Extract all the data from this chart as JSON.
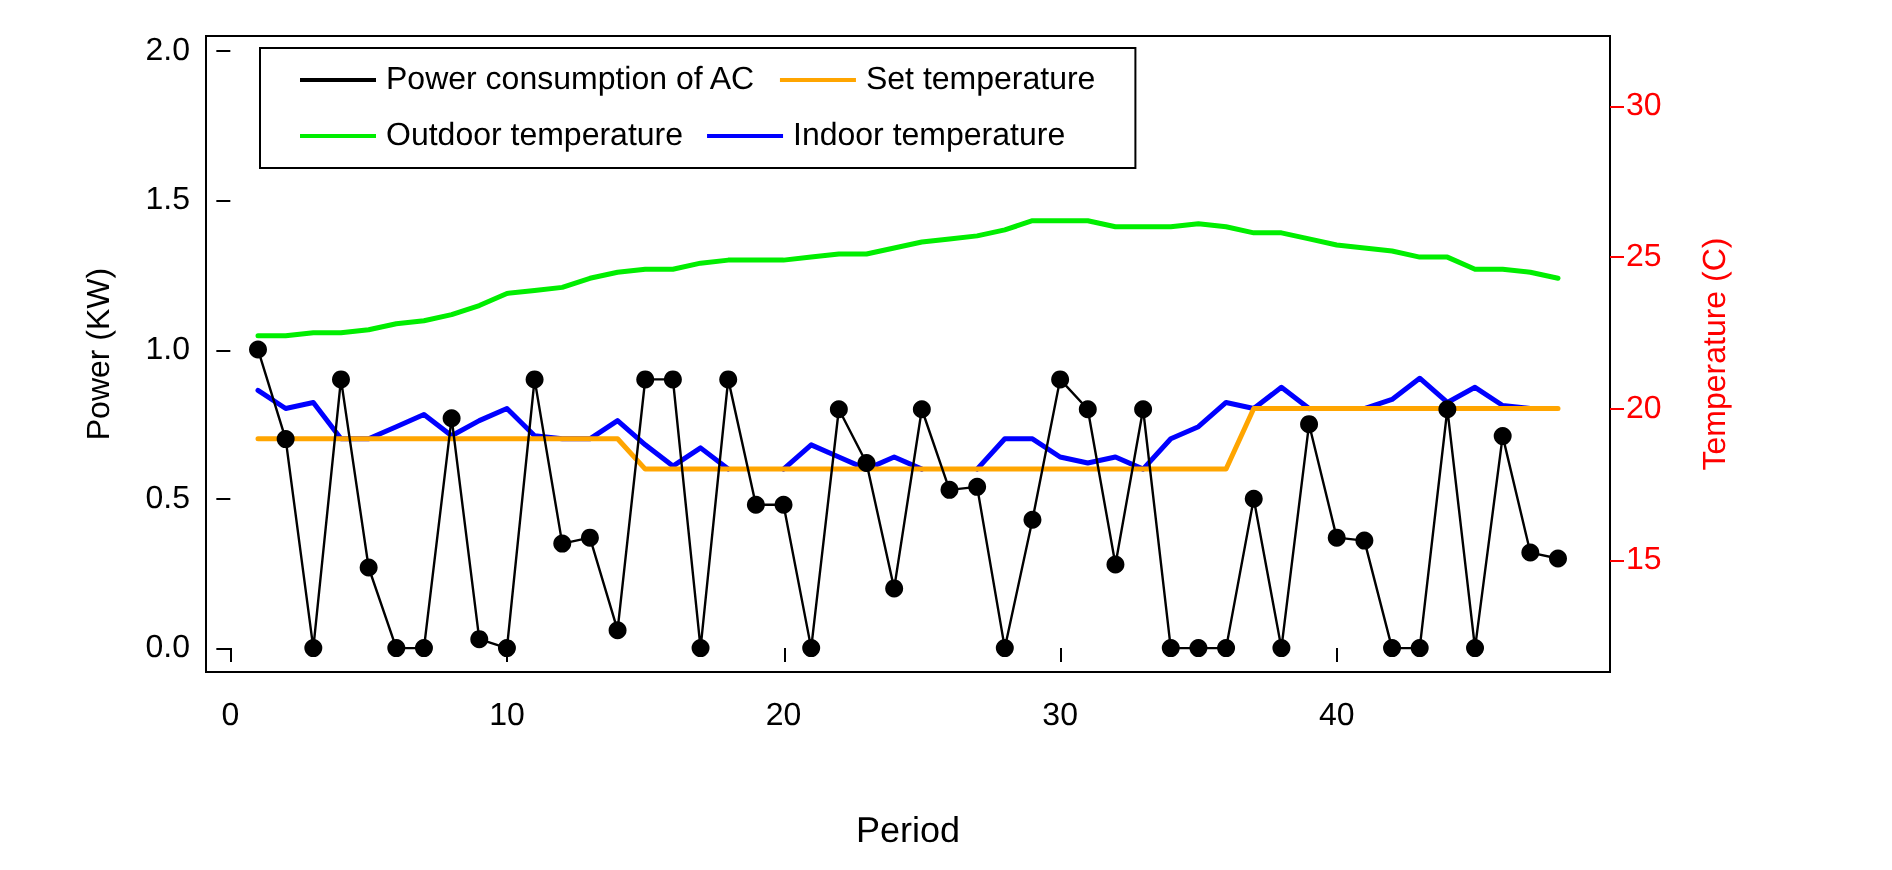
{
  "chart_data": {
    "type": "line",
    "xlabel": "Period",
    "ylabel": "Power (KW)",
    "y2label": "Temperature (C)",
    "x": [
      1,
      2,
      3,
      4,
      5,
      6,
      7,
      8,
      9,
      10,
      11,
      12,
      13,
      14,
      15,
      16,
      17,
      18,
      19,
      20,
      21,
      22,
      23,
      24,
      25,
      26,
      27,
      28,
      29,
      30,
      31,
      32,
      33,
      34,
      35,
      36,
      37,
      38,
      39,
      40,
      41,
      42,
      43,
      44,
      45,
      46,
      47,
      48
    ],
    "series": [
      {
        "name": "Power consumption of AC",
        "color": "#000000",
        "marker": "circle",
        "values": [
          1.0,
          0.7,
          0,
          0.9,
          0.27,
          0,
          0,
          0.77,
          0.03,
          0,
          0.9,
          0.35,
          0.37,
          0.06,
          0.9,
          0.9,
          0,
          0.9,
          0.48,
          0.48,
          0,
          0.8,
          0.62,
          0.2,
          0.8,
          0.53,
          0.54,
          0,
          0.43,
          0.9,
          0.8,
          0.28,
          0.8,
          0,
          0,
          0,
          0.5,
          0,
          0.75,
          0.37,
          0.36,
          0,
          0,
          0.8,
          0,
          0.71,
          0.32,
          0.3
        ]
      },
      {
        "name": "Set temperature",
        "color": "#ffa500",
        "axis": "y2",
        "values": [
          19,
          19,
          19,
          19,
          19,
          19,
          19,
          19,
          19,
          19,
          19,
          19,
          19,
          19,
          18,
          18,
          18,
          18,
          18,
          18,
          18,
          18,
          18,
          18,
          18,
          18,
          18,
          18,
          18,
          18,
          18,
          18,
          18,
          18,
          18,
          18,
          20,
          20,
          20,
          20,
          20,
          20,
          20,
          20,
          20,
          20,
          20,
          20
        ]
      },
      {
        "name": "Outdoor temperature",
        "color": "#00ee00",
        "axis": "y2",
        "values": [
          22.4,
          22.4,
          22.5,
          22.5,
          22.6,
          22.8,
          22.9,
          23.1,
          23.4,
          23.8,
          23.9,
          24.0,
          24.3,
          24.5,
          24.6,
          24.6,
          24.8,
          24.9,
          24.9,
          24.9,
          25.0,
          25.1,
          25.1,
          25.3,
          25.5,
          25.6,
          25.7,
          25.9,
          26.2,
          26.2,
          26.2,
          26.0,
          26.0,
          26.0,
          26.1,
          26.0,
          25.8,
          25.8,
          25.6,
          25.4,
          25.3,
          25.2,
          25.0,
          25.0,
          24.6,
          24.6,
          24.5,
          24.3
        ]
      },
      {
        "name": "Indoor temperature",
        "color": "#0000ff",
        "axis": "y2",
        "values": [
          20.6,
          20.0,
          20.2,
          19.0,
          19.0,
          19.4,
          19.8,
          19.1,
          19.6,
          20.0,
          19.1,
          19.0,
          19.0,
          19.6,
          18.8,
          18.1,
          18.7,
          18.0,
          null,
          18.0,
          18.8,
          18.4,
          18.0,
          18.4,
          18.0,
          null,
          18.0,
          19.0,
          19.0,
          18.4,
          18.2,
          18.4,
          18.0,
          19.0,
          19.4,
          20.2,
          20.0,
          20.7,
          20.0,
          null,
          20.0,
          20.3,
          21.0,
          20.2,
          20.7,
          20.1,
          20.0,
          null
        ]
      }
    ],
    "xlim": [
      -0.88,
      49.88
    ],
    "xticks": [
      0,
      10,
      20,
      30,
      40
    ],
    "ylim": [
      -0.08,
      2.05
    ],
    "yticks": [
      {
        "value": 0,
        "label": "0.0"
      },
      {
        "value": 0.5,
        "label": "0.5"
      },
      {
        "value": 1,
        "label": "1.0"
      },
      {
        "value": 1.5,
        "label": "1.5"
      },
      {
        "value": 2,
        "label": "2.0"
      }
    ],
    "y2lim": [
      11.3,
      32.3
    ],
    "y2ticks": [
      15,
      20,
      25,
      30
    ],
    "grid": false,
    "legend": "top",
    "line_style": "solid"
  }
}
